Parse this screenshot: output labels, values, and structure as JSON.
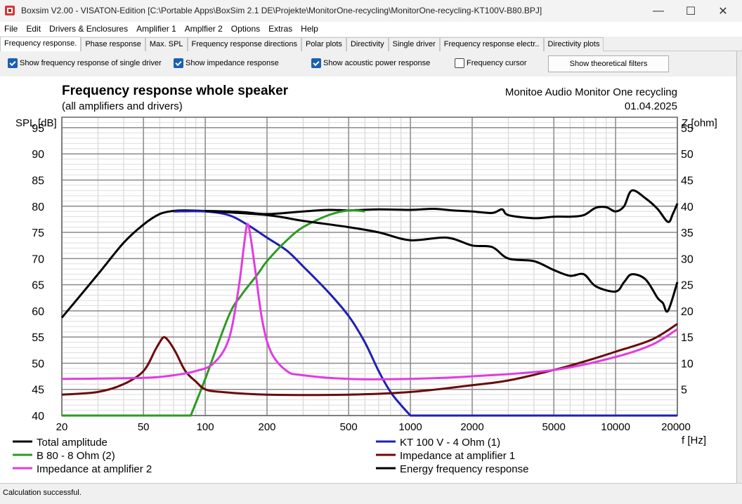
{
  "window": {
    "title": "Boxsim V2.00 - VISATON-Edition [C:\\Portable Apps\\BoxSim 2.1 DE\\Projekte\\MonitorOne-recycling\\MonitorOne-recycling-KT100V-B80.BPJ]",
    "minimize": "—",
    "maximize": "☐",
    "close": "✕"
  },
  "menu": [
    "File",
    "Edit",
    "Drivers & Enclosures",
    "Amplifier 1",
    "Amplfier 2",
    "Options",
    "Extras",
    "Help"
  ],
  "tabs": [
    {
      "label": "Frequency response.",
      "active": true
    },
    {
      "label": "Phase response",
      "active": false
    },
    {
      "label": "Max. SPL",
      "active": false
    },
    {
      "label": "Frequency response directions",
      "active": false
    },
    {
      "label": "Polar plots",
      "active": false
    },
    {
      "label": "Directivity",
      "active": false
    },
    {
      "label": "Single driver",
      "active": false
    },
    {
      "label": "Frequency response electr..",
      "active": false
    },
    {
      "label": "Directivity plots",
      "active": false
    }
  ],
  "toolbar": {
    "show_single_driver": {
      "label": "Show frequency response of single driver",
      "checked": true
    },
    "show_impedance": {
      "label": "Show impedance response",
      "checked": true
    },
    "show_acoustic_power": {
      "label": "Show acoustic power response",
      "checked": true
    },
    "frequency_cursor": {
      "label": "Frequency cursor",
      "checked": false
    },
    "show_filters_button": "Show theoretical filters"
  },
  "status": {
    "text": "Calculation successful."
  },
  "colors": {
    "total": "#000000",
    "kt100": "#1f1fb4",
    "b80": "#2c9a23",
    "imp1": "#6b0a0a",
    "imp2": "#e23be2",
    "energy": "#000000"
  },
  "chart_data": {
    "type": "line",
    "title": "Frequency response whole speaker",
    "subtitle": "(all amplifiers and drivers)",
    "project": "Monitoe Audio Monitor One recycling",
    "date": "01.04.2025",
    "ylabel_left": "SPL [dB]",
    "ylabel_right": "Z [ohm]",
    "xlabel": "f [Hz]",
    "xscale": "log",
    "xlim": [
      20,
      20000
    ],
    "ylim_left": [
      40,
      97
    ],
    "ylim_right": [
      0,
      57
    ],
    "xticks": [
      20,
      50,
      100,
      200,
      500,
      1000,
      2000,
      5000,
      10000,
      20000
    ],
    "yticks_left": [
      40,
      45,
      50,
      55,
      60,
      65,
      70,
      75,
      80,
      85,
      90,
      95
    ],
    "yticks_right": [
      5,
      10,
      15,
      20,
      25,
      30,
      35,
      40,
      45,
      50,
      55
    ],
    "grid": true,
    "legend": [
      {
        "name": "Total amplitude",
        "color": "#000000"
      },
      {
        "name": "KT 100 V - 4 Ohm (1)",
        "color": "#1f1fb4"
      },
      {
        "name": "B 80 - 8 Ohm (2)",
        "color": "#2c9a23"
      },
      {
        "name": "Impedance at amplifier 1",
        "color": "#6b0a0a"
      },
      {
        "name": "Impedance at amplifier 2",
        "color": "#e23be2"
      },
      {
        "name": "Energy frequency response",
        "color": "#000000"
      }
    ],
    "series": [
      {
        "name": "Total amplitude",
        "axis": "left",
        "color": "#000000",
        "points": [
          [
            20,
            58.7
          ],
          [
            30,
            67
          ],
          [
            40,
            73
          ],
          [
            50,
            76.5
          ],
          [
            60,
            78.5
          ],
          [
            70,
            79.1
          ],
          [
            80,
            79.2
          ],
          [
            100,
            79.1
          ],
          [
            150,
            78.9
          ],
          [
            200,
            78.5
          ],
          [
            300,
            79
          ],
          [
            400,
            79.3
          ],
          [
            500,
            79.2
          ],
          [
            700,
            79.4
          ],
          [
            1000,
            79.3
          ],
          [
            1300,
            79.5
          ],
          [
            1600,
            79.2
          ],
          [
            2000,
            79
          ],
          [
            2500,
            78.7
          ],
          [
            2800,
            79.4
          ],
          [
            3000,
            78.3
          ],
          [
            4000,
            77.7
          ],
          [
            5000,
            78
          ],
          [
            6000,
            78
          ],
          [
            7000,
            78.3
          ],
          [
            8000,
            79.7
          ],
          [
            9000,
            79.8
          ],
          [
            10000,
            79
          ],
          [
            11000,
            80
          ],
          [
            12000,
            83
          ],
          [
            14000,
            81.5
          ],
          [
            16000,
            79.5
          ],
          [
            18000,
            77
          ],
          [
            19000,
            78.5
          ],
          [
            20000,
            80.5
          ]
        ]
      },
      {
        "name": "KT 100 V - 4 Ohm (1)",
        "axis": "left",
        "color": "#1f1fb4",
        "points": [
          [
            70,
            79
          ],
          [
            100,
            79
          ],
          [
            130,
            78.3
          ],
          [
            160,
            76.5
          ],
          [
            200,
            74
          ],
          [
            250,
            71.5
          ],
          [
            300,
            68.5
          ],
          [
            400,
            63.5
          ],
          [
            500,
            59
          ],
          [
            600,
            54
          ],
          [
            700,
            48.5
          ],
          [
            800,
            44.5
          ],
          [
            900,
            42
          ],
          [
            1000,
            40
          ]
        ]
      },
      {
        "name": "B 80 - 8 Ohm (2)",
        "axis": "left",
        "color": "#2c9a23",
        "points": [
          [
            85,
            40
          ],
          [
            100,
            47
          ],
          [
            130,
            59
          ],
          [
            150,
            63
          ],
          [
            180,
            67
          ],
          [
            200,
            69.5
          ],
          [
            250,
            73.5
          ],
          [
            300,
            76
          ],
          [
            400,
            78.3
          ],
          [
            500,
            79.2
          ],
          [
            600,
            79
          ]
        ]
      },
      {
        "name": "Energy frequency response",
        "axis": "left",
        "color": "#000000",
        "points": [
          [
            100,
            79.1
          ],
          [
            200,
            78.3
          ],
          [
            300,
            77.2
          ],
          [
            500,
            76
          ],
          [
            700,
            75
          ],
          [
            1000,
            73.5
          ],
          [
            1500,
            74
          ],
          [
            2000,
            72.5
          ],
          [
            2500,
            72.2
          ],
          [
            3000,
            70
          ],
          [
            4000,
            69.5
          ],
          [
            5000,
            67.8
          ],
          [
            6000,
            66.7
          ],
          [
            7000,
            67
          ],
          [
            8000,
            64.7
          ],
          [
            10000,
            63.7
          ],
          [
            11000,
            65.5
          ],
          [
            12000,
            67
          ],
          [
            14000,
            66
          ],
          [
            16000,
            62.5
          ],
          [
            17000,
            61.5
          ],
          [
            18000,
            60
          ],
          [
            20000,
            65.5
          ]
        ]
      },
      {
        "name": "Impedance at amplifier 1",
        "axis": "right",
        "color": "#6b0a0a",
        "points": [
          [
            20,
            4
          ],
          [
            30,
            4.5
          ],
          [
            40,
            6
          ],
          [
            50,
            8.5
          ],
          [
            57,
            12.5
          ],
          [
            60,
            14
          ],
          [
            63,
            15
          ],
          [
            67,
            14
          ],
          [
            72,
            12
          ],
          [
            80,
            8.5
          ],
          [
            90,
            6.5
          ],
          [
            100,
            5
          ],
          [
            120,
            4.5
          ],
          [
            200,
            4
          ],
          [
            500,
            4
          ],
          [
            1000,
            4.5
          ],
          [
            2000,
            5.8
          ],
          [
            3000,
            6.7
          ],
          [
            5000,
            8.7
          ],
          [
            7000,
            10.3
          ],
          [
            10000,
            12.2
          ],
          [
            15000,
            14.5
          ],
          [
            20000,
            17.5
          ]
        ]
      },
      {
        "name": "Impedance at amplifier 2",
        "axis": "right",
        "color": "#e23be2",
        "points": [
          [
            20,
            7
          ],
          [
            50,
            7.2
          ],
          [
            70,
            7.7
          ],
          [
            90,
            8.5
          ],
          [
            110,
            10
          ],
          [
            130,
            14.5
          ],
          [
            145,
            24
          ],
          [
            155,
            33
          ],
          [
            160,
            36.5
          ],
          [
            165,
            35
          ],
          [
            175,
            28
          ],
          [
            190,
            18
          ],
          [
            210,
            12
          ],
          [
            250,
            8.5
          ],
          [
            300,
            7.7
          ],
          [
            500,
            7
          ],
          [
            1000,
            7
          ],
          [
            2000,
            7.5
          ],
          [
            5000,
            8.7
          ],
          [
            10000,
            11.2
          ],
          [
            15000,
            13.5
          ],
          [
            20000,
            16.5
          ]
        ]
      }
    ]
  }
}
